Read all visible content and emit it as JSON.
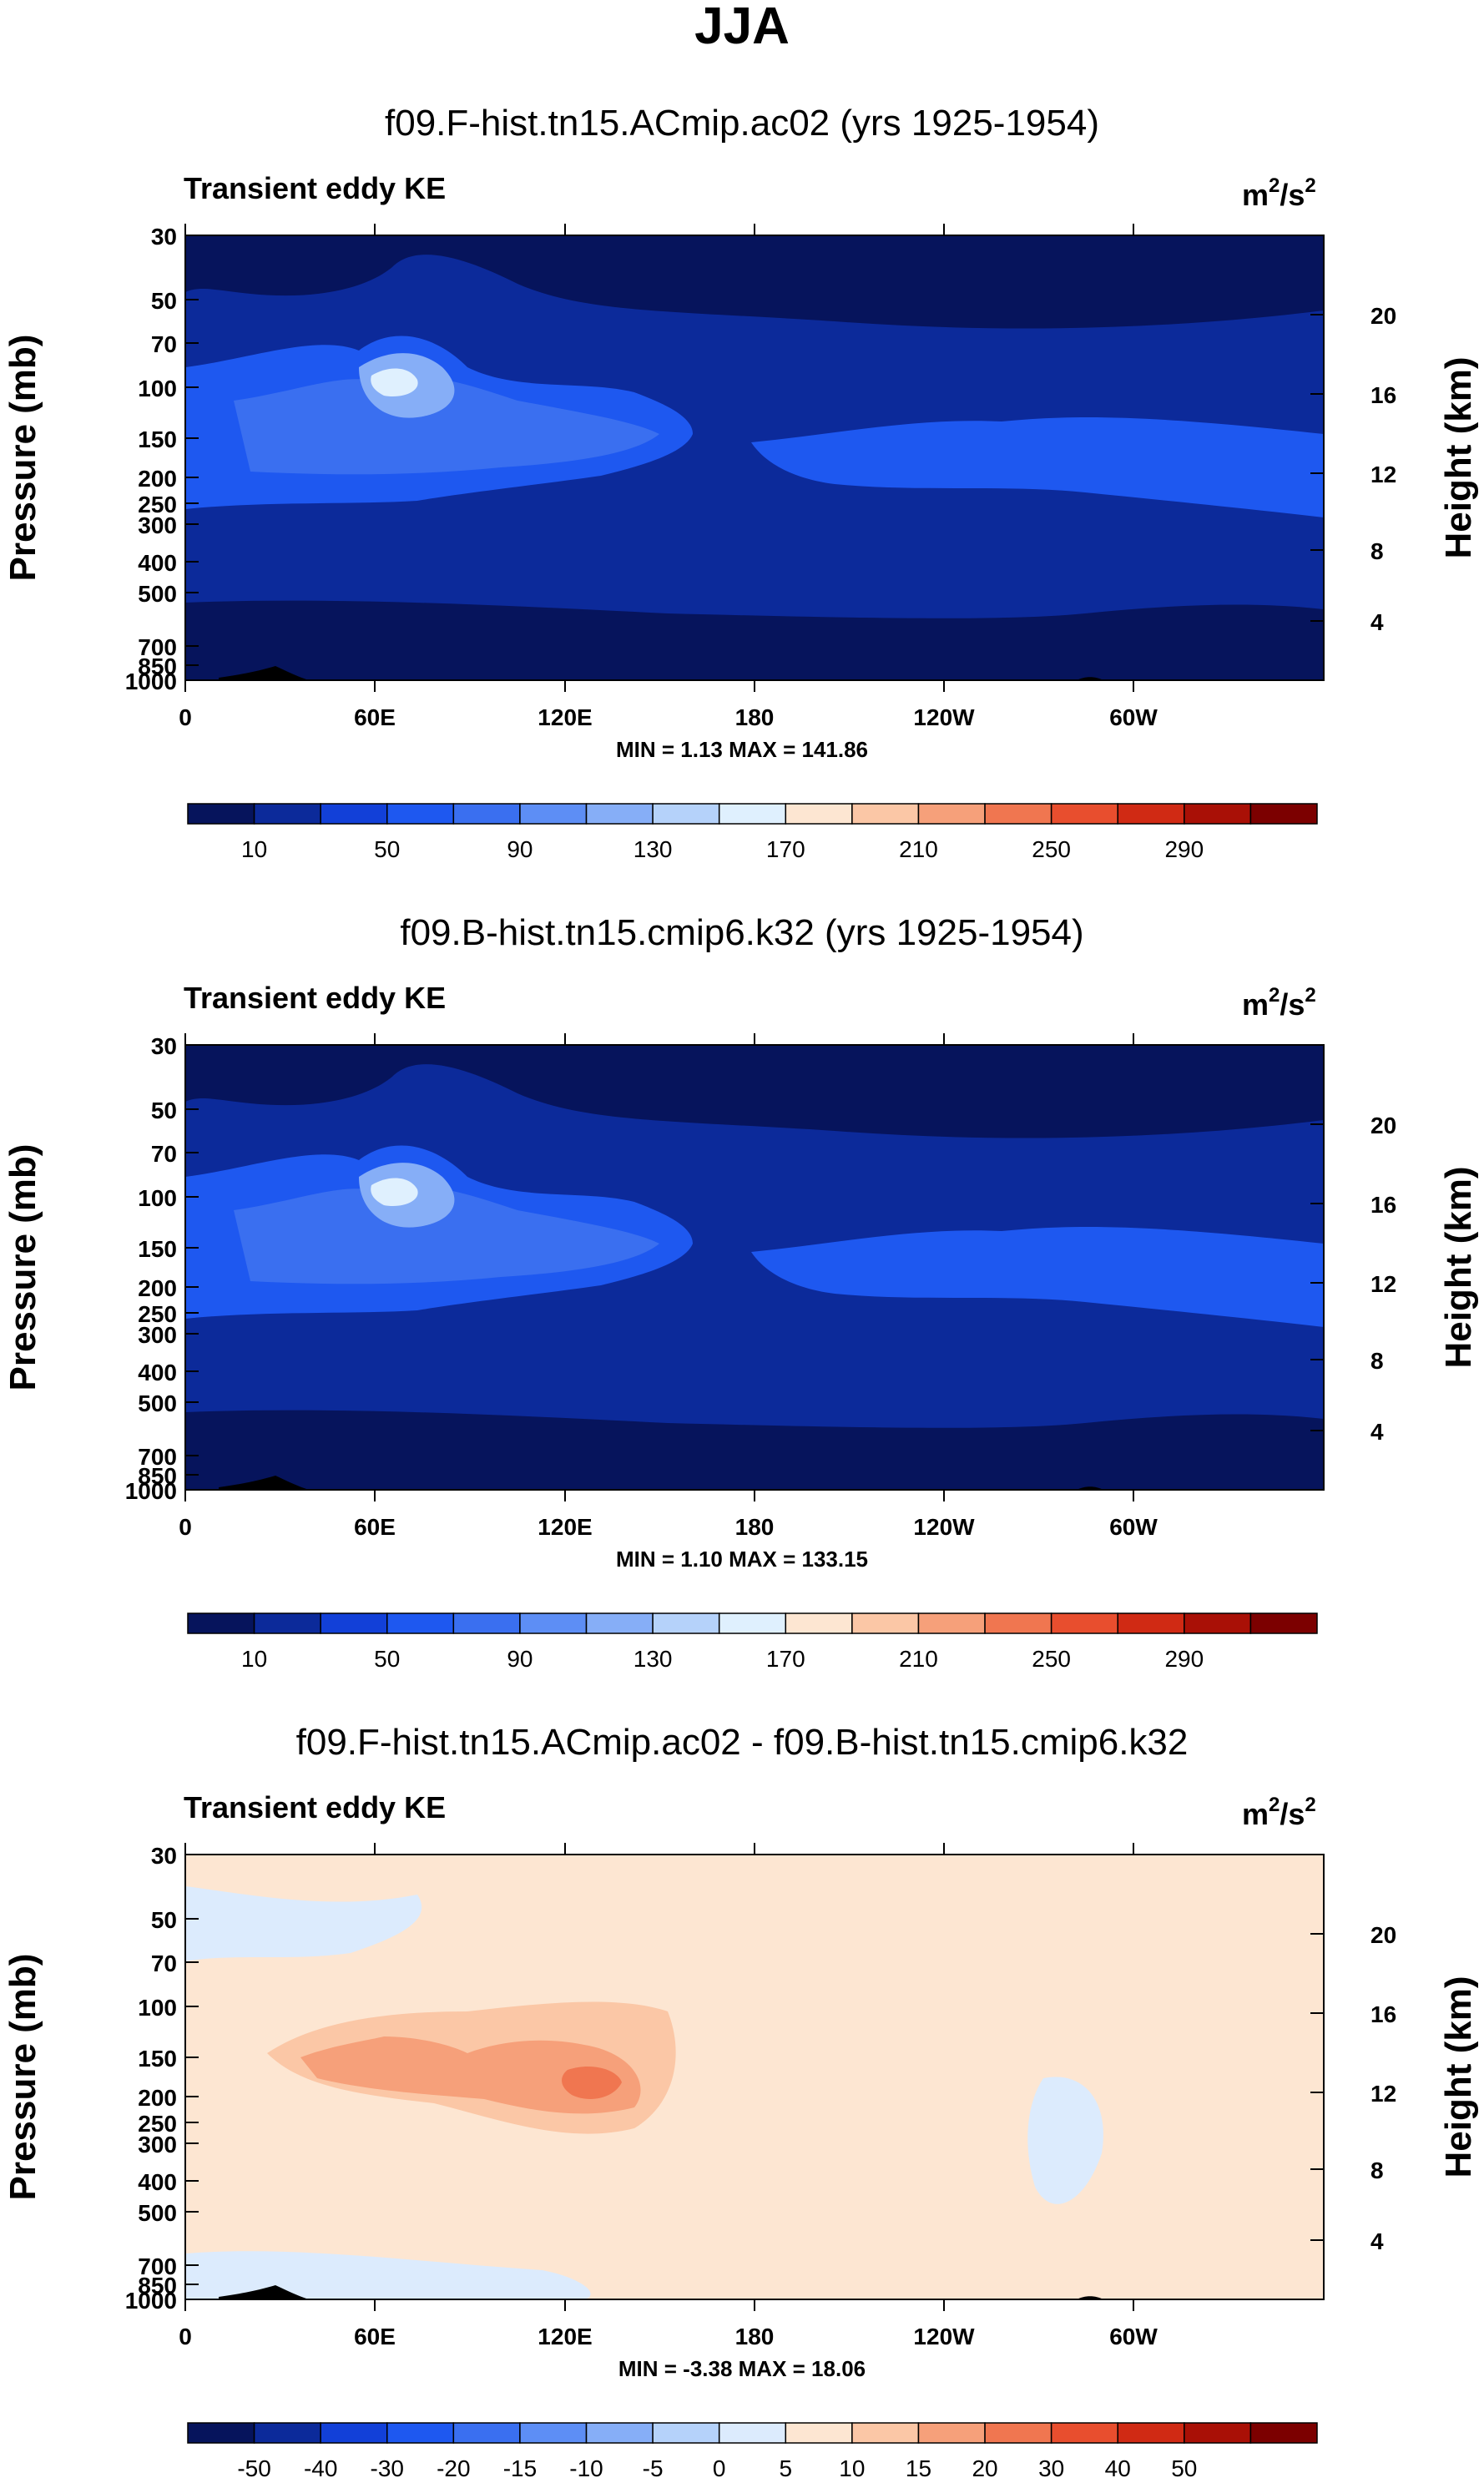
{
  "figure": {
    "title": "JJA",
    "colors": {
      "abs_palette": [
        "#06145c",
        "#0c2a9a",
        "#1240d8",
        "#1e58f0",
        "#3a6ff0",
        "#5d8ef5",
        "#86aef7",
        "#b5d2fa",
        "#dff0fe",
        "#fde6d2",
        "#fbc7a6",
        "#f6a07a",
        "#f07650",
        "#e84e2e",
        "#d02a14",
        "#a91006",
        "#7c0000"
      ],
      "diff_palette": [
        "#06145c",
        "#0c2a9a",
        "#1240d8",
        "#1e58f0",
        "#3a6ff0",
        "#5d8ef5",
        "#86aef7",
        "#b5d2fa",
        "#dcebfd",
        "#fde6d2",
        "#fbc7a6",
        "#f6a07a",
        "#f07650",
        "#e84e2e",
        "#d02a14",
        "#a91006",
        "#7c0000"
      ]
    }
  },
  "chart_data": [
    {
      "type": "contour",
      "panel": "top",
      "title": "f09.F-hist.tn15.ACmip.ac02 (yrs 1925-1954)",
      "left_label": "Transient eddy KE",
      "units_base": "m",
      "units_exp": "2",
      "units_slash": "/s",
      "units_exp2": "2",
      "ylabel": "Pressure (mb)",
      "ylabel_right": "Height (km)",
      "yticks": [
        "30",
        "50",
        "70",
        "100",
        "150",
        "200",
        "250",
        "300",
        "400",
        "500",
        "700",
        "850",
        "1000"
      ],
      "yticks_right": [
        "20",
        "16",
        "12",
        "8",
        "4"
      ],
      "xticks": [
        "0",
        "60E",
        "120E",
        "180",
        "120W",
        "60W"
      ],
      "min_max_text": "MIN =   1.13   MAX = 141.86",
      "colorbar_labels": [
        "10",
        "50",
        "90",
        "130",
        "170",
        "210",
        "250",
        "290"
      ],
      "palette": "abs"
    },
    {
      "type": "contour",
      "panel": "middle",
      "title": "f09.B-hist.tn15.cmip6.k32 (yrs 1925-1954)",
      "left_label": "Transient eddy KE",
      "units_base": "m",
      "units_exp": "2",
      "units_slash": "/s",
      "units_exp2": "2",
      "ylabel": "Pressure (mb)",
      "ylabel_right": "Height (km)",
      "yticks": [
        "30",
        "50",
        "70",
        "100",
        "150",
        "200",
        "250",
        "300",
        "400",
        "500",
        "700",
        "850",
        "1000"
      ],
      "yticks_right": [
        "20",
        "16",
        "12",
        "8",
        "4"
      ],
      "xticks": [
        "0",
        "60E",
        "120E",
        "180",
        "120W",
        "60W"
      ],
      "min_max_text": "MIN =   1.10   MAX = 133.15",
      "colorbar_labels": [
        "10",
        "50",
        "90",
        "130",
        "170",
        "210",
        "250",
        "290"
      ],
      "palette": "abs"
    },
    {
      "type": "contour",
      "panel": "difference",
      "title": "f09.F-hist.tn15.ACmip.ac02 - f09.B-hist.tn15.cmip6.k32",
      "left_label": "Transient eddy KE",
      "units_base": "m",
      "units_exp": "2",
      "units_slash": "/s",
      "units_exp2": "2",
      "ylabel": "Pressure (mb)",
      "ylabel_right": "Height (km)",
      "yticks": [
        "30",
        "50",
        "70",
        "100",
        "150",
        "200",
        "250",
        "300",
        "400",
        "500",
        "700",
        "850",
        "1000"
      ],
      "yticks_right": [
        "20",
        "16",
        "12",
        "8",
        "4"
      ],
      "xticks": [
        "0",
        "60E",
        "120E",
        "180",
        "120W",
        "60W"
      ],
      "min_max_text": "MIN =  -3.38   MAX = 18.06",
      "colorbar_labels": [
        "-50",
        "-40",
        "-30",
        "-20",
        "-15",
        "-10",
        "-5",
        "0",
        "5",
        "10",
        "15",
        "20",
        "30",
        "40",
        "50"
      ],
      "palette": "diff"
    }
  ]
}
